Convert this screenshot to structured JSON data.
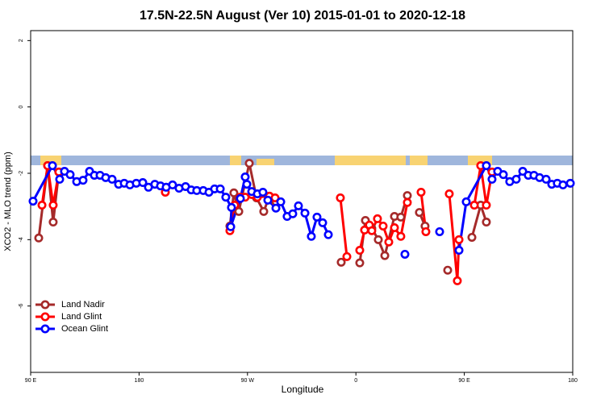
{
  "chart_data": {
    "type": "line",
    "title": "17.5N-22.5N August (Ver 10)   2015-01-01 to 2020-12-18",
    "xlabel": "Longitude",
    "ylabel": "XCO2 - MLO trend (ppm)",
    "xlim": [
      90,
      540
    ],
    "ylim": [
      -8,
      2.3
    ],
    "xticks": [
      {
        "value": 90,
        "label": "90 E"
      },
      180,
      {
        "value": 270,
        "label": "90 W"
      },
      {
        "value": 360,
        "label": "0"
      },
      {
        "value": 450,
        "label": "90 E"
      },
      {
        "value": 540,
        "label": "180"
      }
    ],
    "yticks": [
      -6,
      -4,
      -2,
      0,
      2
    ],
    "legend": "lower left",
    "series": [
      {
        "name": "Land Nadir",
        "color": "#a52a2a",
        "x": [
          96.7,
          104.1,
          108.7,
          113.4,
          null,
          255.4,
          258.7,
          262.8,
          271.5,
          277.5,
          283.5,
          288.2,
          293.6,
          null,
          347.8,
          null,
          363.2,
          367.9,
          373.2,
          378.6,
          384.0,
          392.0,
          397.3,
          402.7,
          null,
          412.7,
          417.4,
          null,
          436.2,
          null,
          456.3,
          463.6,
          468.3
        ],
        "values": [
          -3.95,
          -1.77,
          -3.47,
          -1.96,
          null,
          -3.59,
          -2.59,
          -3.15,
          -1.7,
          -2.74,
          -3.15,
          -2.69,
          -2.86,
          null,
          -4.68,
          null,
          -4.7,
          -3.42,
          -3.66,
          -4.0,
          -4.48,
          -3.3,
          -3.32,
          -2.67,
          null,
          -3.18,
          -3.59,
          null,
          -4.92,
          null,
          -3.93,
          -2.96,
          -3.47
        ]
      },
      {
        "name": "Land Glint",
        "color": "#ff0000",
        "x": [
          99.4,
          104.1,
          108.7,
          113.4,
          null,
          201.8,
          null,
          255.4,
          259.4,
          264.1,
          268.1,
          273.5,
          278.2,
          288.2,
          292.9,
          null,
          347.1,
          352.5,
          null,
          363.2,
          367.2,
          371.2,
          373.2,
          377.9,
          382.6,
          387.3,
          392.0,
          397.3,
          402.7,
          null,
          414.1,
          418.1,
          null,
          437.5,
          444.2,
          445.6,
          null,
          458.3,
          463.6,
          468.3,
          473.0
        ],
        "values": [
          -2.96,
          -1.77,
          -2.96,
          -1.96,
          null,
          -2.57,
          null,
          -3.73,
          -2.96,
          -2.72,
          -2.72,
          -2.64,
          -2.72,
          -2.69,
          -2.74,
          null,
          -2.74,
          -4.51,
          null,
          -4.32,
          -3.71,
          -3.56,
          -3.73,
          -3.37,
          -3.59,
          -4.07,
          -3.64,
          -3.9,
          -2.88,
          null,
          -2.57,
          -3.76,
          null,
          -2.62,
          -5.24,
          -4.0,
          null,
          -2.96,
          -1.77,
          -2.96,
          -1.96
        ]
      },
      {
        "name": "Ocean Glint",
        "color": "#0000ff",
        "x": [
          92.0,
          108.1,
          114.1,
          118.1,
          122.8,
          128.2,
          133.5,
          138.9,
          142.9,
          147.6,
          152.3,
          157.6,
          163.0,
          167.7,
          172.4,
          177.7,
          183.1,
          187.8,
          193.1,
          197.8,
          202.5,
          207.8,
          213.2,
          218.6,
          223.3,
          227.9,
          233.3,
          238.0,
          242.7,
          247.4,
          252.0,
          256.7,
          256.1,
          264.1,
          268.1,
          269.5,
          273.5,
          278.2,
          282.8,
          286.9,
          293.6,
          297.6,
          302.9,
          307.6,
          312.3,
          317.7,
          323.0,
          327.7,
          332.4,
          337.1,
          null,
          400.7,
          null,
          429.5,
          null,
          445.6,
          451.6,
          468.3,
          473.0,
          477.7,
          482.4,
          487.7,
          493.1,
          498.5,
          503.1,
          507.8,
          512.5,
          517.9,
          522.6,
          527.2,
          531.9,
          538.0
        ],
        "values": [
          -2.84,
          -1.77,
          -2.18,
          -1.94,
          -2.04,
          -2.25,
          -2.21,
          -1.94,
          -2.06,
          -2.06,
          -2.13,
          -2.18,
          -2.33,
          -2.3,
          -2.35,
          -2.3,
          -2.28,
          -2.42,
          -2.33,
          -2.38,
          -2.42,
          -2.35,
          -2.45,
          -2.4,
          -2.5,
          -2.52,
          -2.52,
          -2.57,
          -2.47,
          -2.47,
          -2.72,
          -3.03,
          -3.61,
          -2.76,
          -2.11,
          -2.33,
          -2.55,
          -2.62,
          -2.57,
          -2.81,
          -3.05,
          -2.86,
          -3.3,
          -3.22,
          -2.98,
          -3.2,
          -3.9,
          -3.32,
          -3.49,
          -3.85,
          null,
          -4.44,
          null,
          -3.76,
          null,
          -4.32,
          -2.86,
          -1.77,
          -2.18,
          -1.94,
          -2.04,
          -2.25,
          -2.18,
          -1.94,
          -2.06,
          -2.06,
          -2.13,
          -2.18,
          -2.33,
          -2.3,
          -2.35,
          -2.3
        ]
      }
    ]
  }
}
